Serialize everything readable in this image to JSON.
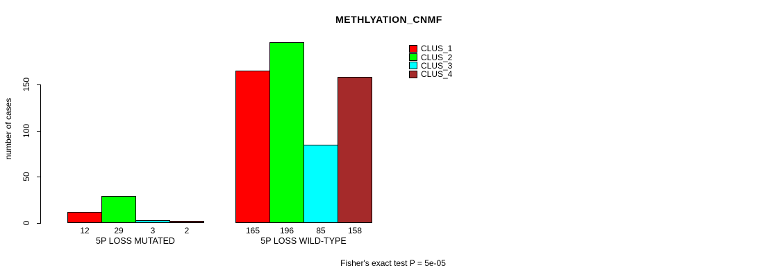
{
  "chart_data": {
    "type": "bar",
    "title": "METHLYATION_CNMF",
    "ylabel": "number of cases",
    "yticks": [
      0,
      50,
      100,
      150
    ],
    "ylim": [
      0,
      205
    ],
    "grid": false,
    "legend_position": "top-right",
    "categories": [
      "5P LOSS MUTATED",
      "5P LOSS WILD-TYPE"
    ],
    "series": [
      {
        "name": "CLUS_1",
        "color": "#FF0000",
        "values": [
          12,
          165
        ]
      },
      {
        "name": "CLUS_2",
        "color": "#00FF00",
        "values": [
          29,
          196
        ]
      },
      {
        "name": "CLUS_3",
        "color": "#00FFFF",
        "values": [
          3,
          85
        ]
      },
      {
        "name": "CLUS_4",
        "color": "#A52A2A",
        "values": [
          2,
          158
        ]
      }
    ],
    "bar_value_labels": [
      [
        "12",
        "29",
        "3",
        "2"
      ],
      [
        "165",
        "196",
        "85",
        "158"
      ]
    ],
    "footnote": "Fisher's exact test P = 5e-05"
  }
}
